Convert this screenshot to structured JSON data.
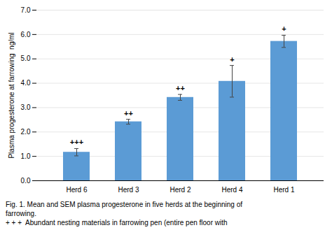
{
  "chart_data": {
    "type": "bar",
    "categories": [
      "Herd 6",
      "Herd 3",
      "Herd 2",
      "Herd 4",
      "Herd 1"
    ],
    "values": [
      1.17,
      2.42,
      3.42,
      4.08,
      5.72
    ],
    "errors": [
      0.15,
      0.1,
      0.12,
      0.65,
      0.25
    ],
    "annotations": [
      "+++",
      "++",
      "++",
      "+",
      "+"
    ],
    "color": "#5B9BD5",
    "ylabel": "Plasma progesterone at farrowing  ng/ml",
    "ylim": [
      0,
      7
    ],
    "yticks": [
      0,
      1,
      2,
      3,
      4,
      5,
      6,
      7
    ],
    "grid": true,
    "caption": [
      "Fig. 1. Mean and SEM plasma progesterone in five herds at the beginning of",
      "farrowing.",
      "+ + +  Abundant nesting materials in farrowing pen (entire pen floor with"
    ]
  }
}
